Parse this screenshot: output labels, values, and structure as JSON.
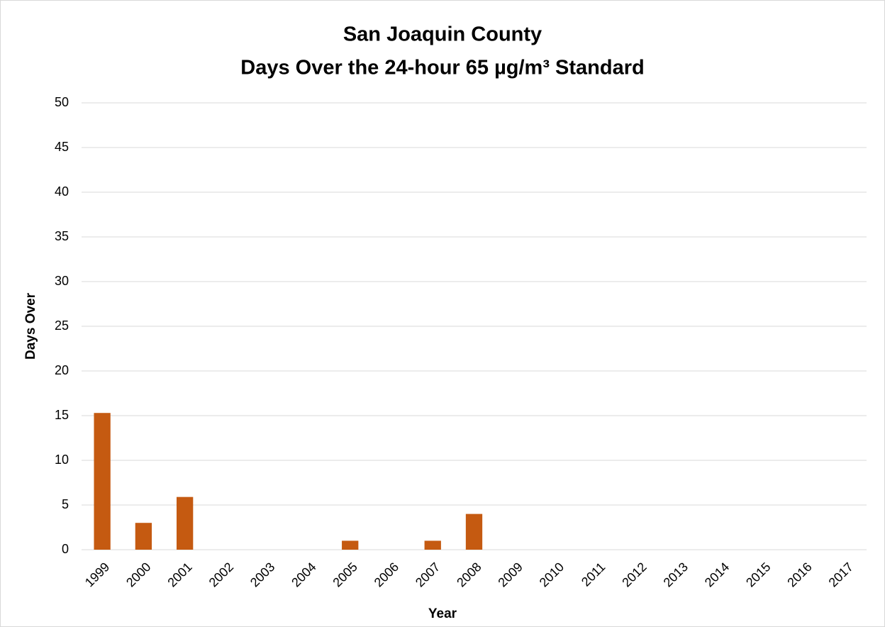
{
  "chart_data": {
    "type": "bar",
    "title": "San Joaquin County",
    "subtitle": "Days Over the 24-hour 65 µg/m³ Standard",
    "x_label": "Year",
    "y_label": "Days Over",
    "categories": [
      "1999",
      "2000",
      "2001",
      "2002",
      "2003",
      "2004",
      "2005",
      "2006",
      "2007",
      "2008",
      "2009",
      "2010",
      "2011",
      "2012",
      "2013",
      "2014",
      "2015",
      "2016",
      "2017"
    ],
    "values": [
      15.3,
      3,
      5.9,
      0,
      0,
      0,
      1,
      0,
      1,
      4,
      0,
      0,
      0,
      0,
      0,
      0,
      0,
      0,
      0
    ],
    "color": "#c55a11",
    "ylim": [
      0,
      50
    ],
    "yticks": [
      0,
      5,
      10,
      15,
      20,
      25,
      30,
      35,
      40,
      45,
      50
    ],
    "grid": true
  }
}
